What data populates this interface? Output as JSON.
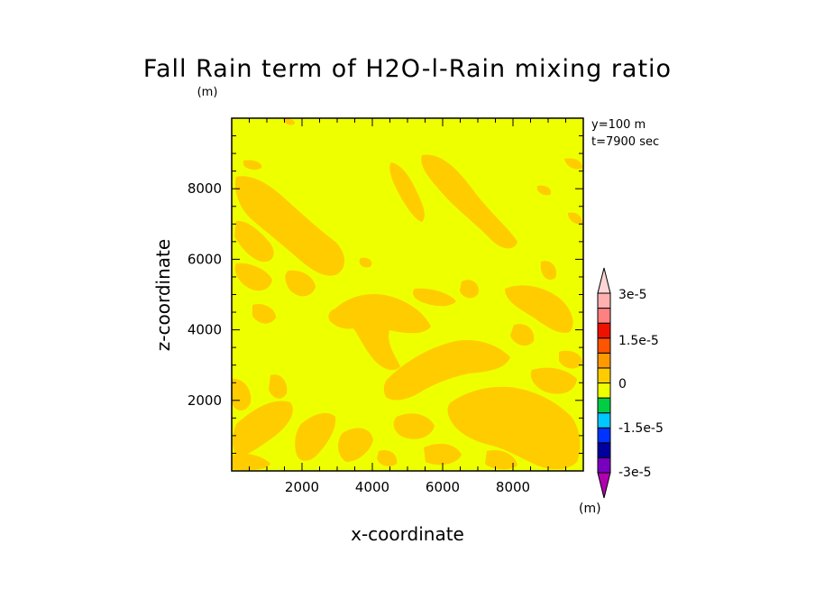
{
  "chart_data": {
    "type": "heatmap",
    "title": "Fall Rain term of H2O-l-Rain mixing ratio",
    "title_unit": "(m)",
    "xlabel": "x-coordinate",
    "ylabel": "z-coordinate",
    "annotations": [
      "y=100 m",
      "t=7900 sec"
    ],
    "xlim": [
      0,
      10000
    ],
    "ylim": [
      0,
      10000
    ],
    "xticks": [
      2000,
      4000,
      6000,
      8000
    ],
    "yticks": [
      2000,
      4000,
      6000,
      8000
    ],
    "xtick_labels": [
      "2000",
      "4000",
      "6000",
      "8000"
    ],
    "ytick_labels": [
      "2000",
      "4000",
      "6000",
      "8000"
    ],
    "field_colors": {
      "background": "#eeff00",
      "positive": "#ffcc00"
    },
    "field_values": {
      "background": "0 to -3.75e-6",
      "positive": "0 to 3.75e-6"
    },
    "colorbar": {
      "levels": [
        -3e-05,
        -2.25e-05,
        -1.5e-05,
        -7.5e-06,
        0,
        7.5e-06,
        1.5e-05,
        2.25e-05,
        3e-05
      ],
      "colors": [
        "#b000b0",
        "#7a00c0",
        "#0000a0",
        "#0033ff",
        "#00c8ff",
        "#00cc44",
        "#eeff00",
        "#ffcc00",
        "#ff9900",
        "#ff5500",
        "#ee1100",
        "#ff8080",
        "#ffb0b0",
        "#ffd5d5"
      ],
      "labels": [
        "3e-5",
        "1.5e-5",
        "0",
        "-1.5e-5",
        "-3e-5"
      ],
      "unit": "(m)"
    },
    "grid": false,
    "legend_position": "right"
  }
}
